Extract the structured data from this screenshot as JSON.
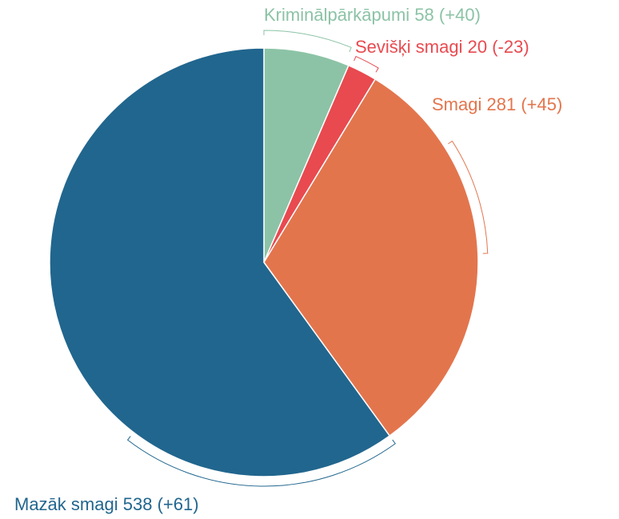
{
  "chart_data": {
    "type": "pie",
    "categories": [
      "Kriminālpārkāpumi",
      "Sevišķi smagi",
      "Smagi",
      "Mazāk smagi"
    ],
    "values": [
      58,
      20,
      281,
      538
    ],
    "changes": [
      40,
      -23,
      45,
      61
    ],
    "change_labels": [
      "(+40)",
      "(-23)",
      "(+45)",
      "(+61)"
    ],
    "colors": [
      "#8cc3a6",
      "#e84a50",
      "#e3754d",
      "#21668e"
    ]
  }
}
